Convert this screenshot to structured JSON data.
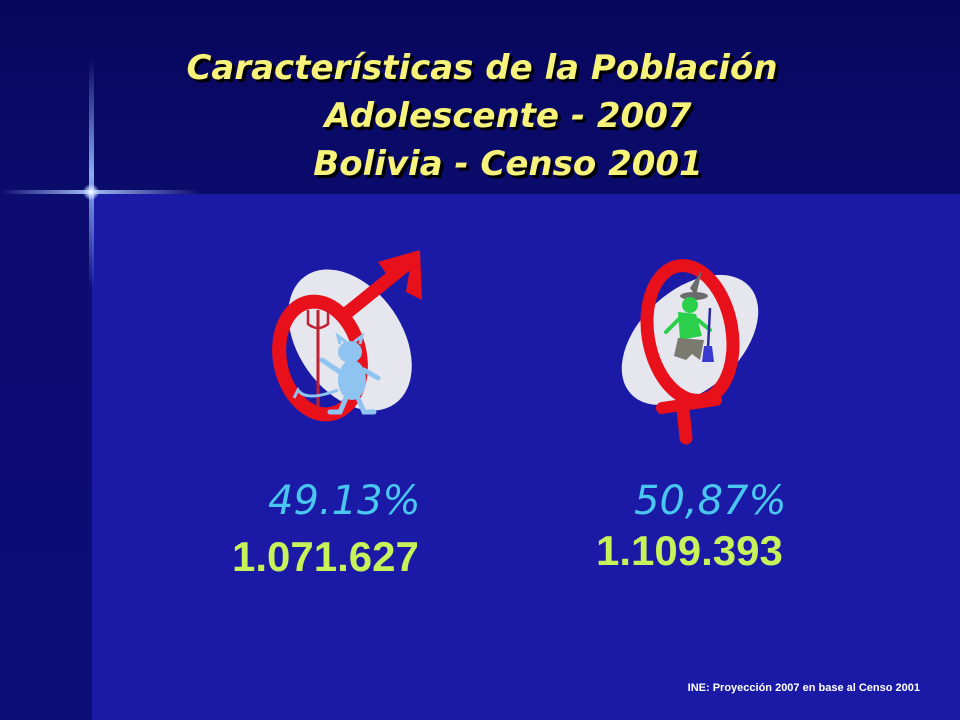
{
  "title": {
    "line1": "Características de la Población",
    "line2": "Adolescente - 2007",
    "line3": "Bolivia - Censo 2001"
  },
  "male": {
    "icon": "male-symbol-icon",
    "percent": "49.13%",
    "count": "1.071.627"
  },
  "female": {
    "icon": "female-symbol-icon",
    "percent": "50,87%",
    "count": "1.109.393"
  },
  "source": "INE: Proyección 2007 en base al Censo 2001",
  "colors": {
    "background": "#1a1aa6",
    "title": "#f6f27a",
    "percent": "#49c7ee",
    "count": "#c7f25a",
    "symbol": "#e8101a"
  }
}
